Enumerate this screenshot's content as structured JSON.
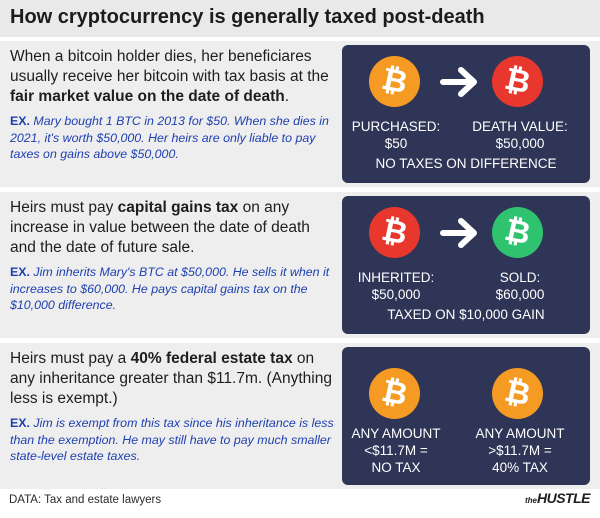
{
  "title": "How cryptocurrency is generally taxed post-death",
  "sections": [
    {
      "lead_pre": "When a bitcoin holder dies, her beneficiares usually receive her bitcoin with tax basis at the ",
      "lead_bold": "fair market value on the date of death",
      "lead_post": ".",
      "ex_tag": "EX.",
      "ex_text": " Mary bought 1 BTC in 2013 for $50. When she dies in 2021, it's worth $50,000. Her heirs are only liable to pay taxes on gains above $50,000.",
      "coin_left": "orange",
      "coin_right": "red",
      "left_label": [
        "PURCHASED:",
        "$50"
      ],
      "right_label": [
        "DEATH VALUE:",
        "$50,000"
      ],
      "footer": "NO TAXES ON DIFFERENCE"
    },
    {
      "lead_pre": "Heirs must pay ",
      "lead_bold": "capital gains tax",
      "lead_post": " on any increase in value between the date of death and the date of future sale.",
      "ex_tag": "EX.",
      "ex_text": " Jim inherits Mary's BTC at $50,000. He sells it when it increases to $60,000. He pays capital gains tax on the $10,000 difference.",
      "coin_left": "red",
      "coin_right": "green",
      "left_label": [
        "INHERITED:",
        "$50,000"
      ],
      "right_label": [
        "SOLD:",
        "$60,000"
      ],
      "footer": "TAXED ON $10,000 GAIN"
    },
    {
      "lead_pre": "Heirs must pay a ",
      "lead_bold": "40% federal estate tax",
      "lead_post": " on any inheritance greater than $11.7m. (Anything less is exempt.)",
      "ex_tag": "EX.",
      "ex_text": " Jim is exempt from this tax since his inheritance is less than the exemption. He may still have to pay much smaller state-level estate taxes.",
      "coin_left": "orange",
      "coin_right": "orange",
      "left_label": [
        "ANY AMOUNT",
        "<$11.7M =",
        "NO TAX"
      ],
      "right_label": [
        "ANY AMOUNT",
        ">$11.7M =",
        "40% TAX"
      ],
      "footer": ""
    }
  ],
  "coin_symbol": "₿",
  "colors": {
    "orange": "#f59a23",
    "red": "#e8372c",
    "green": "#2fc370",
    "panel": "#2e3557",
    "example_text": "#1e3fb0"
  },
  "source": "DATA: Tax and estate lawyers",
  "logo_the": "the",
  "logo_name": "HUSTLE"
}
